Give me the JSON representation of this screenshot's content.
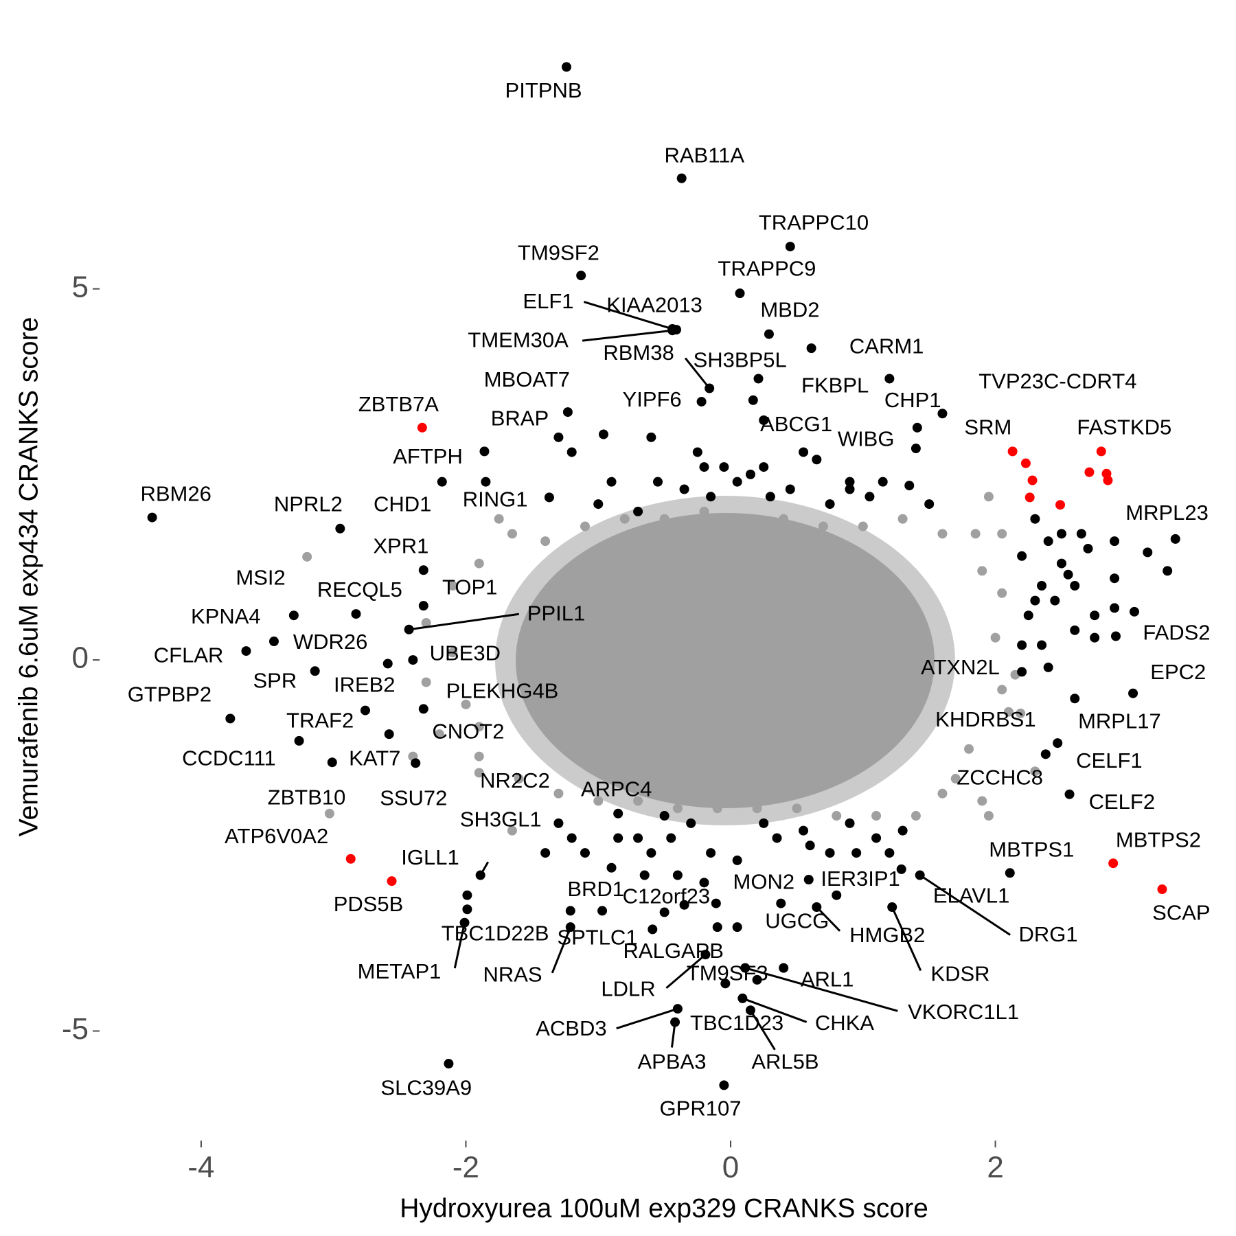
{
  "chart_data": {
    "type": "scatter",
    "x_label": "Hydroxyurea 100uM exp329 CRANKS score",
    "y_label": "Vemurafenib 6.6uM exp434 CRANKS score",
    "xlim": [
      -4.7,
      3.6
    ],
    "ylim": [
      -6.3,
      8.3
    ],
    "xticks": [
      -4,
      -2,
      0,
      2
    ],
    "yticks": [
      -5,
      0,
      5
    ],
    "series": [
      {
        "color": "#a0a0a0",
        "labels": [
          "MSI2",
          "ZBTB10",
          "NR2C2",
          "KHDRBS1",
          null,
          null,
          null,
          null,
          null,
          null,
          null,
          null,
          null,
          null,
          null,
          null,
          null,
          null,
          null,
          null,
          null,
          null,
          null,
          null,
          null,
          null,
          null,
          null,
          null,
          null,
          null,
          null,
          null,
          null,
          null,
          null,
          null,
          null,
          null,
          null,
          null,
          null,
          null,
          null,
          null,
          null,
          null,
          null,
          null,
          null,
          null,
          null,
          null,
          null
        ],
        "x": [
          -3.2,
          -3.03,
          -1.9,
          2.19,
          -1.65,
          -1.4,
          -1.1,
          -0.8,
          -0.5,
          -0.2,
          0.1,
          0.4,
          0.7,
          1.0,
          1.3,
          1.6,
          1.85,
          2.05,
          1.9,
          2.05,
          2.0,
          2.05,
          2.1,
          1.8,
          1.7,
          1.6,
          1.9,
          1.95,
          1.4,
          1.1,
          0.8,
          0.5,
          0.2,
          -0.1,
          -0.4,
          -0.7,
          -1.0,
          -1.3,
          -1.6,
          -1.9,
          -2.2,
          -2.0,
          -2.3,
          -2.1,
          -2.3,
          -2.1,
          -1.9,
          -2.4,
          -1.65,
          2.3,
          1.95,
          -1.9,
          2.15,
          -1.75
        ],
        "values": [
          1.39,
          -2.07,
          -1.52,
          -0.72,
          1.7,
          1.6,
          1.8,
          1.9,
          1.9,
          2.0,
          1.9,
          1.9,
          1.8,
          1.8,
          1.9,
          1.7,
          1.7,
          1.7,
          1.2,
          0.9,
          0.3,
          -0.4,
          -0.7,
          -1.2,
          -1.6,
          -1.8,
          -1.9,
          -2.1,
          -2.1,
          -2.1,
          -2.1,
          -2.0,
          -2.0,
          -2.0,
          -2.0,
          -1.9,
          -1.9,
          -1.8,
          -1.6,
          -1.3,
          -1.0,
          -0.6,
          -0.3,
          0.1,
          0.5,
          1.0,
          1.3,
          -1.3,
          -2.3,
          -1.5,
          2.2,
          -0.9,
          -0.2,
          1.9
        ]
      },
      {
        "color": "#000000",
        "labels": [
          "PITPNB",
          "RAB11A",
          "TRAPPC10",
          "TM9SF2",
          "TRAPPC9",
          "ELF1",
          "KIAA2013",
          "TMEM30A",
          "MBD2",
          "CARM1",
          "RBM38",
          "SH3BP5L",
          "MBOAT7",
          "YIPF6",
          "FKBPL",
          "CHP1",
          "TVP23C-CDRT4",
          "BRAP",
          "ABCG1",
          "WIBG",
          "AFTPH",
          "CHD1",
          "RING1",
          "RBM26",
          "NPRL2",
          "MRPL23",
          "XPR1",
          "RECQL5",
          "KPNA4",
          "TOP1",
          "PPIL1",
          "FADS2",
          "WDR26",
          "CFLAR",
          "UBE3D",
          "ATXN2L",
          "SPR",
          "IREB2",
          "EPC2",
          "PLEKHG4B",
          "GTPBP2",
          "MRPL17",
          "TRAF2",
          "CNOT2",
          "CCDC111",
          "KAT7",
          "CELF1",
          "SSU72",
          "ZCCHC8",
          "CELF2",
          "ARPC4",
          "SH3GL1",
          "MBTPS1",
          "IGLL1",
          "IER3IP1",
          "ELAVL1",
          "DRG1",
          "MON2",
          "BRD1",
          "C12orf23",
          "HMGB2",
          "UGCG",
          "TBC1D22B",
          "METAP1",
          "SPTLC1",
          "NRAS",
          "RALGAPB",
          "KDSR",
          "LDLR",
          "TM9SF3",
          "ARL1",
          "VKORC1L1",
          "CHKA",
          "ACBD3",
          "TBC1D23",
          "ARL5B",
          "APBA3",
          "SLC39A9",
          "GPR107",
          null,
          null,
          null,
          null,
          null,
          null,
          null,
          null,
          null,
          null,
          null,
          null,
          null,
          null,
          null,
          null,
          null,
          null,
          null,
          null,
          null,
          null,
          null,
          null,
          null,
          null,
          null,
          null,
          null,
          null,
          null,
          null,
          null,
          null,
          null,
          null,
          null,
          null,
          null,
          null,
          null,
          null,
          null,
          null,
          null,
          null,
          null,
          null,
          null,
          null,
          null,
          null,
          null,
          null,
          null,
          null,
          null,
          null,
          null,
          null,
          null,
          null,
          null,
          null,
          null,
          null,
          null,
          null,
          null,
          null,
          null,
          null,
          null,
          null,
          null,
          null,
          null,
          null,
          null
        ],
        "x": [
          -1.24,
          -0.37,
          0.45,
          -1.13,
          0.07,
          -0.44,
          -0.41,
          -0.44,
          0.29,
          0.61,
          -0.16,
          0.21,
          -1.23,
          -0.22,
          0.17,
          1.2,
          1.6,
          -0.96,
          0.25,
          1.41,
          -1.86,
          -2.18,
          -1.37,
          -4.37,
          -2.95,
          3.36,
          -2.32,
          -2.83,
          -3.3,
          -2.32,
          -2.43,
          2.91,
          -3.45,
          -3.66,
          -2.4,
          2.2,
          -3.14,
          -2.59,
          3.04,
          -2.32,
          -3.78,
          2.6,
          -2.76,
          -2.58,
          -3.26,
          -3.01,
          2.47,
          -2.38,
          2.38,
          2.56,
          -0.85,
          -1.89,
          2.11,
          -1.99,
          0.8,
          1.29,
          1.43,
          0.59,
          -1.21,
          -0.11,
          0.65,
          0.38,
          -1.99,
          -2.01,
          -0.97,
          -1.21,
          -0.59,
          1.22,
          -0.19,
          0.2,
          0.4,
          0.11,
          0.09,
          -0.4,
          -0.04,
          0.15,
          -0.42,
          -2.13,
          -0.05,
          2.3,
          2.4,
          2.5,
          2.6,
          2.35,
          2.45,
          2.2,
          2.7,
          2.9,
          3.15,
          3.3,
          2.5,
          2.25,
          2.6,
          2.75,
          2.35,
          2.9,
          3.05,
          2.4,
          2.55,
          2.65,
          2.9,
          2.75,
          2.3,
          2.2,
          -1.3,
          -1.2,
          -0.9,
          -1.0,
          -0.7,
          -0.55,
          -0.25,
          -0.2,
          -0.05,
          0.05,
          0.25,
          0.3,
          0.55,
          0.65,
          0.9,
          1.05,
          1.15,
          1.4,
          1.5,
          -0.6,
          -0.35,
          0.15,
          0.75,
          0.45,
          -1.85,
          -0.15,
          0.9,
          1.35,
          -1.4,
          -1.3,
          -1.1,
          -0.85,
          -0.7,
          -0.6,
          -0.5,
          -0.45,
          -0.3,
          -0.15,
          -0.9,
          -0.65,
          -0.4,
          -0.2,
          0.05,
          0.25,
          0.35,
          0.55,
          0.75,
          0.9,
          1.1,
          1.2,
          1.3,
          -0.1,
          0.05,
          -0.5,
          0.6,
          0.95,
          -1.2,
          -0.35
        ],
        "values": [
          7.99,
          6.49,
          5.57,
          5.18,
          4.94,
          4.46,
          4.45,
          4.44,
          4.39,
          4.2,
          3.66,
          3.79,
          3.34,
          3.48,
          3.5,
          3.79,
          3.32,
          3.04,
          3.23,
          3.13,
          2.81,
          2.4,
          2.19,
          1.92,
          1.77,
          1.63,
          1.21,
          0.62,
          0.6,
          0.73,
          0.41,
          0.32,
          0.25,
          0.12,
          0,
          -0.16,
          -0.15,
          -0.05,
          -0.45,
          -0.66,
          -0.79,
          -0.52,
          -0.68,
          -1.0,
          -1.09,
          -1.38,
          -1.12,
          -1.39,
          -1.27,
          -1.81,
          -2.07,
          -2.9,
          -2.87,
          -3.17,
          -3.17,
          -2.82,
          -2.9,
          -2.96,
          -3.38,
          -3.28,
          -3.33,
          -3.28,
          -3.36,
          -3.54,
          -3.38,
          -3.6,
          -3.63,
          -3.33,
          -3.97,
          -4.31,
          -4.15,
          -4.15,
          -4.56,
          -4.7,
          -4.36,
          -4.72,
          -4.88,
          -5.44,
          -5.73,
          1.9,
          1.6,
          1.3,
          1.0,
          1.0,
          0.8,
          1.4,
          1.5,
          1.1,
          1.45,
          1.2,
          1.7,
          0.6,
          0.4,
          0.3,
          0.2,
          0.7,
          0.65,
          -0.1,
          1.15,
          1.7,
          1.6,
          0.6,
          0.8,
          0.2,
          3.0,
          2.8,
          2.4,
          2.1,
          2.0,
          2.4,
          2.8,
          2.6,
          2.6,
          2.4,
          2.6,
          2.2,
          2.8,
          2.7,
          2.4,
          2.2,
          2.4,
          2.85,
          2.1,
          3.0,
          2.3,
          2.5,
          2.1,
          2.3,
          2.4,
          2.2,
          2.3,
          2.35,
          -2.6,
          -2.2,
          -2.6,
          -2.4,
          -2.4,
          -2.6,
          -2.1,
          -2.4,
          -2.2,
          -2.6,
          -2.8,
          -2.9,
          -2.9,
          -3.0,
          -2.7,
          -2.2,
          -2.4,
          -2.3,
          -2.6,
          -2.2,
          -2.4,
          -2.6,
          -2.3,
          -3.6,
          -3.6,
          -3.4,
          -2.5,
          -2.6,
          -2.4,
          -3.3
        ]
      },
      {
        "color": "#ff0000",
        "labels": [
          "ZBTB7A",
          "SRM",
          "FASTKD5",
          "ATP6V0A2",
          "PDS5B",
          "MBTPS2",
          "SCAP",
          null,
          null,
          null,
          null,
          null,
          null,
          null
        ],
        "x": [
          -2.33,
          2.13,
          2.8,
          -2.87,
          -2.56,
          2.89,
          3.26,
          2.23,
          2.28,
          2.26,
          2.49,
          2.71,
          2.84,
          2.85
        ],
        "values": [
          3.13,
          2.81,
          2.81,
          -2.68,
          -2.98,
          -2.74,
          -3.09,
          2.65,
          2.42,
          2.19,
          2.09,
          2.53,
          2.51,
          2.42
        ]
      }
    ]
  }
}
